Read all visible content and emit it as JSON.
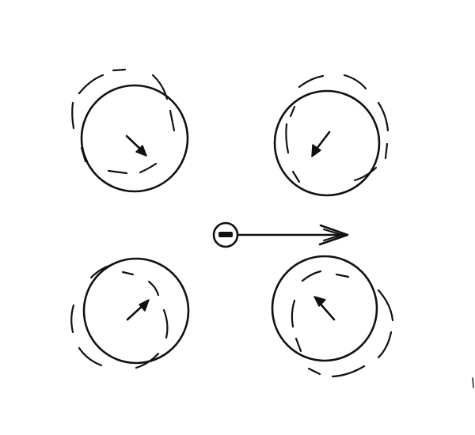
{
  "diagram": {
    "description_labels": [],
    "charge": {
      "sign": "−",
      "motion": "moving right"
    },
    "atoms": [
      {
        "id": "top-left",
        "displacement": "down-right"
      },
      {
        "id": "top-right",
        "displacement": "down-left"
      },
      {
        "id": "bottom-left",
        "displacement": "up-right"
      },
      {
        "id": "bottom-right",
        "displacement": "up-left"
      }
    ]
  }
}
